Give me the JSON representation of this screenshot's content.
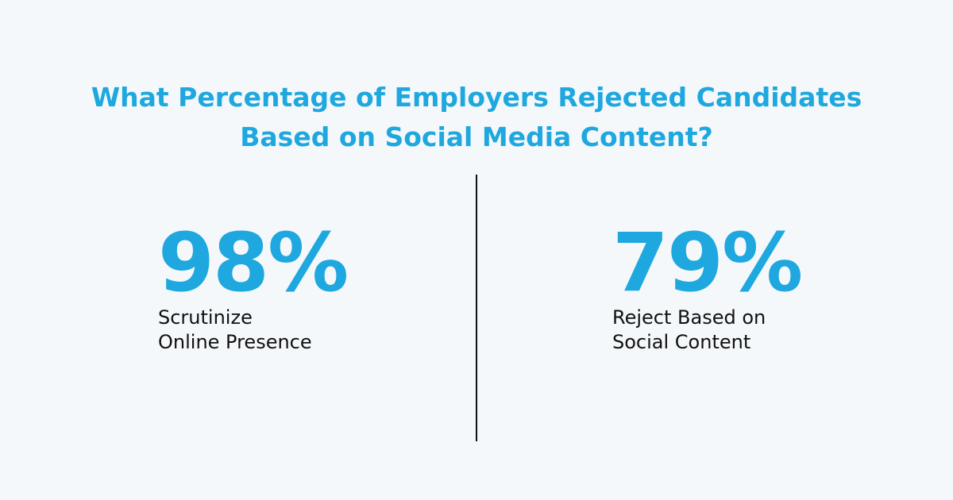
{
  "header": {
    "title_line_1": "What Percentage of Employers Rejected Candidates",
    "title_line_2": "Based on Social Media Content?"
  },
  "stats": [
    {
      "value": "98%",
      "label_line_1": "Scrutinize",
      "label_line_2": "Online Presence"
    },
    {
      "value": "79%",
      "label_line_1": "Reject Based on",
      "label_line_2": "Social Content"
    }
  ],
  "colors": {
    "accent": "#1ea8df",
    "text": "#111111",
    "background": "#f4f8fa"
  }
}
